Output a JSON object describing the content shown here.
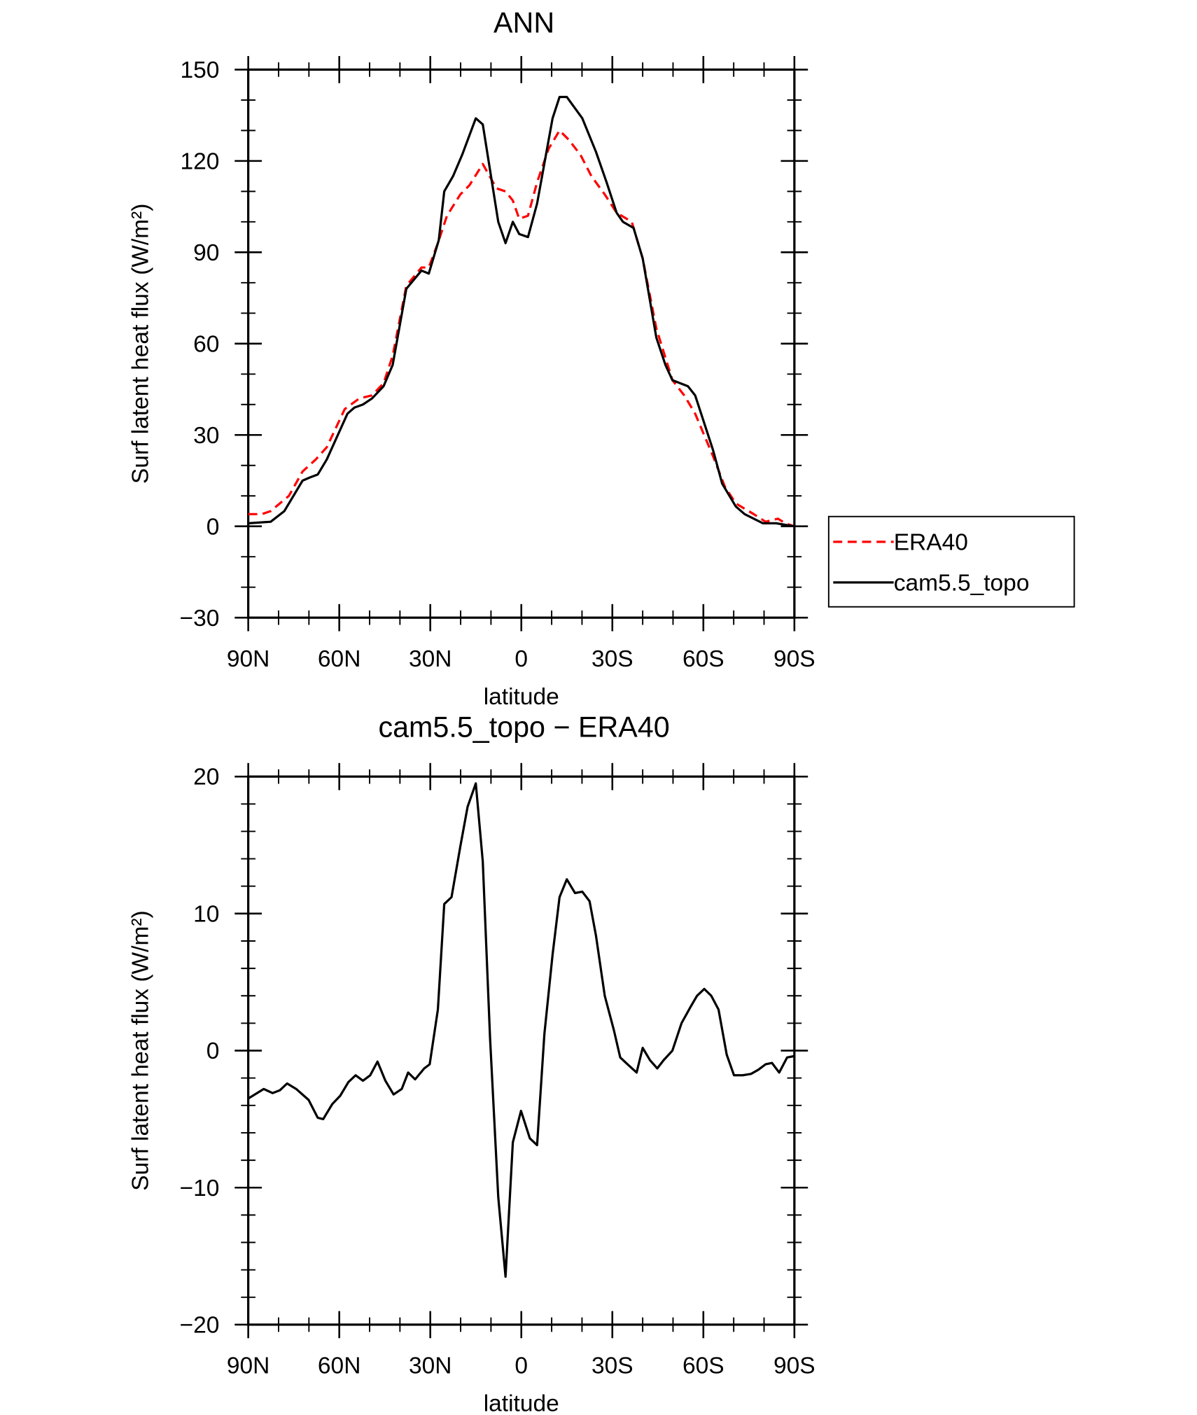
{
  "chart_data": [
    {
      "type": "line",
      "title": "ANN",
      "xlabel": "latitude",
      "ylabel": "Surf latent heat flux (W/m²)",
      "xlim": [
        90,
        -90
      ],
      "xticks": [
        {
          "value": 90,
          "label": "90N"
        },
        {
          "value": 60,
          "label": "60N"
        },
        {
          "value": 30,
          "label": "30N"
        },
        0,
        {
          "value": -30,
          "label": "30S"
        },
        {
          "value": -60,
          "label": "60S"
        },
        {
          "value": -90,
          "label": "90S"
        }
      ],
      "ylim": [
        -30,
        150
      ],
      "yticks": [
        {
          "value": -30,
          "label": "−30"
        },
        0,
        30,
        60,
        90,
        120,
        150
      ],
      "legend": "outside-right",
      "series": [
        {
          "name": "ERA40",
          "color": "#ff0000",
          "line_style": "dashed",
          "x": [
            90,
            85.5,
            82.6,
            76.6,
            72.1,
            67.7,
            64.1,
            58.2,
            53.4,
            49.2,
            45.4,
            42.4,
            37.9,
            32.9,
            30.5,
            27.5,
            24.5,
            20.1,
            17.1,
            12.7,
            8.2,
            5.2,
            2.8,
            0.7,
            -2.2,
            -5.2,
            -9,
            -12.6,
            -15.6,
            -19.5,
            -23.1,
            -27.5,
            -31.4,
            -36.4,
            -40,
            -44.5,
            -49.8,
            -53.7,
            -57.3,
            -63.2,
            -67.1,
            -70.7,
            -76.6,
            -80.5,
            -84.6,
            -87,
            -90
          ],
          "values": [
            4,
            4,
            5,
            10,
            18,
            22,
            26,
            38.5,
            42,
            43,
            47,
            56,
            79,
            85,
            85,
            93,
            102,
            109,
            112,
            119,
            111,
            110,
            107,
            101,
            102,
            113,
            124,
            130,
            127,
            122,
            115,
            109,
            103,
            100,
            88,
            65,
            48,
            43,
            37,
            23,
            13,
            7.5,
            4,
            1.5,
            2.5,
            1,
            0
          ]
        },
        {
          "name": "cam5.5_topo",
          "color": "#000000",
          "line_style": "solid",
          "x": [
            90,
            82.6,
            78.1,
            72.1,
            69.8,
            67.1,
            64.1,
            57.3,
            55,
            52.2,
            49.2,
            45.4,
            42.4,
            37.9,
            32.9,
            30.5,
            27.2,
            25.4,
            22.5,
            19.5,
            15,
            12.7,
            7.6,
            5.2,
            2.8,
            0.7,
            -2.2,
            -5.2,
            -10.3,
            -12.6,
            -15,
            -20.1,
            -24.6,
            -28.1,
            -31.4,
            -33.5,
            -37,
            -40,
            -44.5,
            -47.5,
            -49.8,
            -54.9,
            -57.3,
            -63.2,
            -66.2,
            -70.7,
            -73.6,
            -79.6,
            -84,
            -87,
            -90
          ],
          "values": [
            1,
            1.5,
            5,
            15,
            16,
            17,
            22,
            37,
            39,
            40,
            42,
            46,
            53,
            78,
            84,
            83,
            94,
            110,
            115,
            122,
            134,
            132,
            100,
            93,
            100,
            96,
            95,
            106,
            134,
            141,
            141,
            134,
            123,
            113,
            103,
            100,
            98,
            88,
            62,
            53,
            48,
            46,
            43,
            25,
            14,
            6.5,
            4,
            1,
            1,
            0.5,
            0
          ]
        }
      ]
    },
    {
      "type": "line",
      "title": "cam5.5_topo − ERA40",
      "xlabel": "latitude",
      "ylabel": "Surf latent heat flux (W/m²)",
      "xlim": [
        90,
        -90
      ],
      "xticks": [
        {
          "value": 90,
          "label": "90N"
        },
        {
          "value": 60,
          "label": "60N"
        },
        {
          "value": 30,
          "label": "30N"
        },
        0,
        {
          "value": -30,
          "label": "30S"
        },
        {
          "value": -60,
          "label": "60S"
        },
        {
          "value": -90,
          "label": "90S"
        }
      ],
      "ylim": [
        -20,
        20
      ],
      "yticks": [
        {
          "value": -20,
          "label": "−20"
        },
        {
          "value": -10,
          "label": "−10"
        },
        0,
        10,
        20
      ],
      "series": [
        {
          "color": "#000000",
          "line_style": "solid",
          "x": [
            90,
            84.9,
            82,
            79.6,
            77.2,
            74.2,
            70.1,
            67.1,
            65.3,
            62.3,
            59.7,
            57,
            54.6,
            52.2,
            49.8,
            47.4,
            44.8,
            42.1,
            39.4,
            37.3,
            35,
            32,
            30.2,
            27.5,
            25.4,
            23,
            20.1,
            17.7,
            15,
            12.7,
            10.3,
            7.6,
            5.2,
            2.8,
            0.1,
            -2.8,
            -5.2,
            -7.6,
            -10.3,
            -12.6,
            -15,
            -17.7,
            -20.1,
            -22.5,
            -24.6,
            -27.5,
            -30.5,
            -32.6,
            -35,
            -38,
            -40,
            -42.4,
            -44.8,
            -46.9,
            -49.8,
            -52.8,
            -55.8,
            -57.9,
            -60.3,
            -62.6,
            -65,
            -67.7,
            -70.1,
            -73,
            -75.7,
            -78.1,
            -80.5,
            -82.6,
            -85,
            -87.6,
            -90
          ],
          "values": [
            -3.5,
            -2.8,
            -3.1,
            -2.9,
            -2.4,
            -2.8,
            -3.6,
            -4.9,
            -5,
            -3.9,
            -3.3,
            -2.3,
            -1.8,
            -2.2,
            -1.8,
            -0.8,
            -2.2,
            -3.2,
            -2.8,
            -1.6,
            -2.1,
            -1.3,
            -1,
            3,
            10.7,
            11.2,
            14.9,
            17.8,
            19.5,
            13.8,
            0.9,
            -10.7,
            -16.5,
            -6.7,
            -4.4,
            -6.4,
            -6.9,
            1.2,
            7,
            11.2,
            12.5,
            11.5,
            11.6,
            10.9,
            8.4,
            4,
            1.5,
            -0.5,
            -1,
            -1.6,
            0.2,
            -0.7,
            -1.3,
            -0.7,
            0,
            2,
            3.2,
            4,
            4.5,
            4,
            3,
            -0.3,
            -1.8,
            -1.8,
            -1.7,
            -1.4,
            -1,
            -0.9,
            -1.6,
            -0.5,
            -0.4
          ]
        }
      ]
    }
  ]
}
